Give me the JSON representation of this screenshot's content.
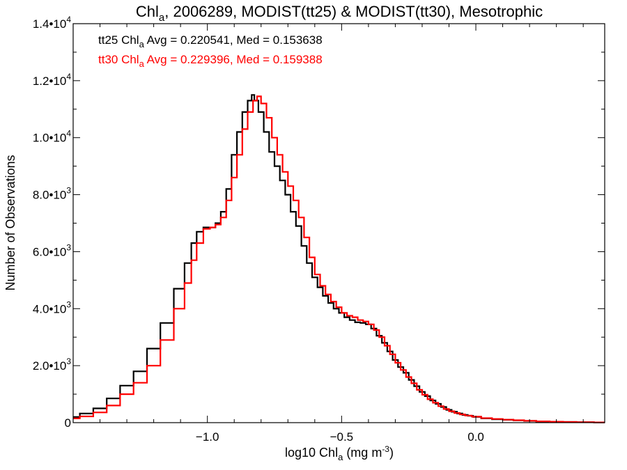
{
  "chart_data": {
    "type": "line",
    "step": true,
    "title": {
      "prefix": "Chl",
      "sub": "a",
      "suffix": ", 2006289, MODIST(tt25) & MODIST(tt30), Mesotrophic"
    },
    "xlabel": {
      "prefix": "log10 Chl",
      "sub": "a",
      "suffix": " (mg m",
      "sup": "-3",
      "end": ")"
    },
    "ylabel": "Number of Observations",
    "xlim": [
      -1.5,
      0.48
    ],
    "ylim": [
      0,
      14000
    ],
    "x_ticks": [
      {
        "value": -1.0,
        "label": "−1.0"
      },
      {
        "value": -0.5,
        "label": "−0.5"
      },
      {
        "value": 0.0,
        "label": "0.0"
      }
    ],
    "y_ticks": [
      {
        "value": 0,
        "label": "0",
        "exp": ""
      },
      {
        "value": 2000,
        "label": "2.0•10",
        "exp": "3"
      },
      {
        "value": 4000,
        "label": "4.0•10",
        "exp": "3"
      },
      {
        "value": 6000,
        "label": "6.0•10",
        "exp": "3"
      },
      {
        "value": 8000,
        "label": "8.0•10",
        "exp": "3"
      },
      {
        "value": 10000,
        "label": "1.0•10",
        "exp": "4"
      },
      {
        "value": 12000,
        "label": "1.2•10",
        "exp": "4"
      },
      {
        "value": 14000,
        "label": "1.4•10",
        "exp": "4"
      }
    ],
    "stats": [
      {
        "series": "tt25",
        "color": "#000000",
        "pre": "tt25 Chl",
        "sub": "a",
        "post": " Avg = 0.220541, Med = 0.153638"
      },
      {
        "series": "tt30",
        "color": "#ff0000",
        "pre": "tt30 Chl",
        "sub": "a",
        "post": " Avg = 0.229396, Med = 0.159388"
      }
    ],
    "series": [
      {
        "name": "tt25",
        "color": "#000000",
        "points": [
          [
            -1.5,
            200
          ],
          [
            -1.45,
            320
          ],
          [
            -1.4,
            500
          ],
          [
            -1.35,
            850
          ],
          [
            -1.3,
            1300
          ],
          [
            -1.25,
            1800
          ],
          [
            -1.2,
            2600
          ],
          [
            -1.15,
            3500
          ],
          [
            -1.1,
            4700
          ],
          [
            -1.07,
            5600
          ],
          [
            -1.05,
            6300
          ],
          [
            -1.03,
            6700
          ],
          [
            -1.0,
            6850
          ],
          [
            -0.98,
            6850
          ],
          [
            -0.96,
            7000
          ],
          [
            -0.94,
            7400
          ],
          [
            -0.92,
            8200
          ],
          [
            -0.9,
            9400
          ],
          [
            -0.88,
            10200
          ],
          [
            -0.86,
            10900
          ],
          [
            -0.84,
            11300
          ],
          [
            -0.83,
            11500
          ],
          [
            -0.82,
            11300
          ],
          [
            -0.8,
            10900
          ],
          [
            -0.78,
            10200
          ],
          [
            -0.76,
            9500
          ],
          [
            -0.74,
            9000
          ],
          [
            -0.72,
            8500
          ],
          [
            -0.7,
            8000
          ],
          [
            -0.68,
            7400
          ],
          [
            -0.66,
            6900
          ],
          [
            -0.64,
            6200
          ],
          [
            -0.62,
            5600
          ],
          [
            -0.6,
            5100
          ],
          [
            -0.58,
            4750
          ],
          [
            -0.56,
            4450
          ],
          [
            -0.54,
            4200
          ],
          [
            -0.52,
            4000
          ],
          [
            -0.5,
            3850
          ],
          [
            -0.48,
            3700
          ],
          [
            -0.46,
            3600
          ],
          [
            -0.44,
            3520
          ],
          [
            -0.42,
            3500
          ],
          [
            -0.4,
            3450
          ],
          [
            -0.38,
            3300
          ],
          [
            -0.36,
            3050
          ],
          [
            -0.34,
            2800
          ],
          [
            -0.32,
            2500
          ],
          [
            -0.3,
            2200
          ],
          [
            -0.28,
            1950
          ],
          [
            -0.26,
            1750
          ],
          [
            -0.24,
            1500
          ],
          [
            -0.22,
            1280
          ],
          [
            -0.2,
            1080
          ],
          [
            -0.18,
            930
          ],
          [
            -0.16,
            780
          ],
          [
            -0.14,
            660
          ],
          [
            -0.12,
            550
          ],
          [
            -0.1,
            450
          ],
          [
            -0.08,
            380
          ],
          [
            -0.06,
            320
          ],
          [
            -0.04,
            270
          ],
          [
            -0.02,
            240
          ],
          [
            0.0,
            200
          ],
          [
            0.04,
            150
          ],
          [
            0.08,
            120
          ],
          [
            0.12,
            100
          ],
          [
            0.16,
            80
          ],
          [
            0.2,
            60
          ],
          [
            0.25,
            40
          ],
          [
            0.3,
            30
          ],
          [
            0.35,
            25
          ],
          [
            0.4,
            15
          ],
          [
            0.48,
            10
          ]
        ]
      },
      {
        "name": "tt30",
        "color": "#ff0000",
        "points": [
          [
            -1.5,
            150
          ],
          [
            -1.45,
            220
          ],
          [
            -1.4,
            360
          ],
          [
            -1.35,
            600
          ],
          [
            -1.3,
            1000
          ],
          [
            -1.25,
            1400
          ],
          [
            -1.2,
            2000
          ],
          [
            -1.15,
            2900
          ],
          [
            -1.1,
            4000
          ],
          [
            -1.07,
            4900
          ],
          [
            -1.05,
            5700
          ],
          [
            -1.03,
            6300
          ],
          [
            -1.0,
            6800
          ],
          [
            -0.98,
            6850
          ],
          [
            -0.96,
            6950
          ],
          [
            -0.94,
            7200
          ],
          [
            -0.92,
            7800
          ],
          [
            -0.9,
            8600
          ],
          [
            -0.88,
            9400
          ],
          [
            -0.86,
            10300
          ],
          [
            -0.84,
            10900
          ],
          [
            -0.82,
            11300
          ],
          [
            -0.81,
            11450
          ],
          [
            -0.79,
            11200
          ],
          [
            -0.77,
            10700
          ],
          [
            -0.75,
            10000
          ],
          [
            -0.73,
            9400
          ],
          [
            -0.71,
            8800
          ],
          [
            -0.69,
            8300
          ],
          [
            -0.67,
            7800
          ],
          [
            -0.65,
            7200
          ],
          [
            -0.63,
            6500
          ],
          [
            -0.61,
            5800
          ],
          [
            -0.59,
            5200
          ],
          [
            -0.57,
            4800
          ],
          [
            -0.55,
            4500
          ],
          [
            -0.53,
            4250
          ],
          [
            -0.51,
            4050
          ],
          [
            -0.49,
            3850
          ],
          [
            -0.47,
            3750
          ],
          [
            -0.45,
            3700
          ],
          [
            -0.43,
            3600
          ],
          [
            -0.41,
            3550
          ],
          [
            -0.39,
            3450
          ],
          [
            -0.37,
            3250
          ],
          [
            -0.35,
            3000
          ],
          [
            -0.33,
            2700
          ],
          [
            -0.31,
            2400
          ],
          [
            -0.29,
            2100
          ],
          [
            -0.27,
            1850
          ],
          [
            -0.25,
            1600
          ],
          [
            -0.23,
            1380
          ],
          [
            -0.21,
            1150
          ],
          [
            -0.19,
            980
          ],
          [
            -0.17,
            820
          ],
          [
            -0.15,
            700
          ],
          [
            -0.13,
            580
          ],
          [
            -0.11,
            480
          ],
          [
            -0.09,
            400
          ],
          [
            -0.07,
            340
          ],
          [
            -0.05,
            290
          ],
          [
            -0.03,
            250
          ],
          [
            0.0,
            210
          ],
          [
            0.04,
            160
          ],
          [
            0.08,
            130
          ],
          [
            0.12,
            105
          ],
          [
            0.16,
            85
          ],
          [
            0.2,
            65
          ],
          [
            0.25,
            45
          ],
          [
            0.3,
            35
          ],
          [
            0.35,
            25
          ],
          [
            0.4,
            18
          ],
          [
            0.48,
            10
          ]
        ]
      }
    ]
  }
}
